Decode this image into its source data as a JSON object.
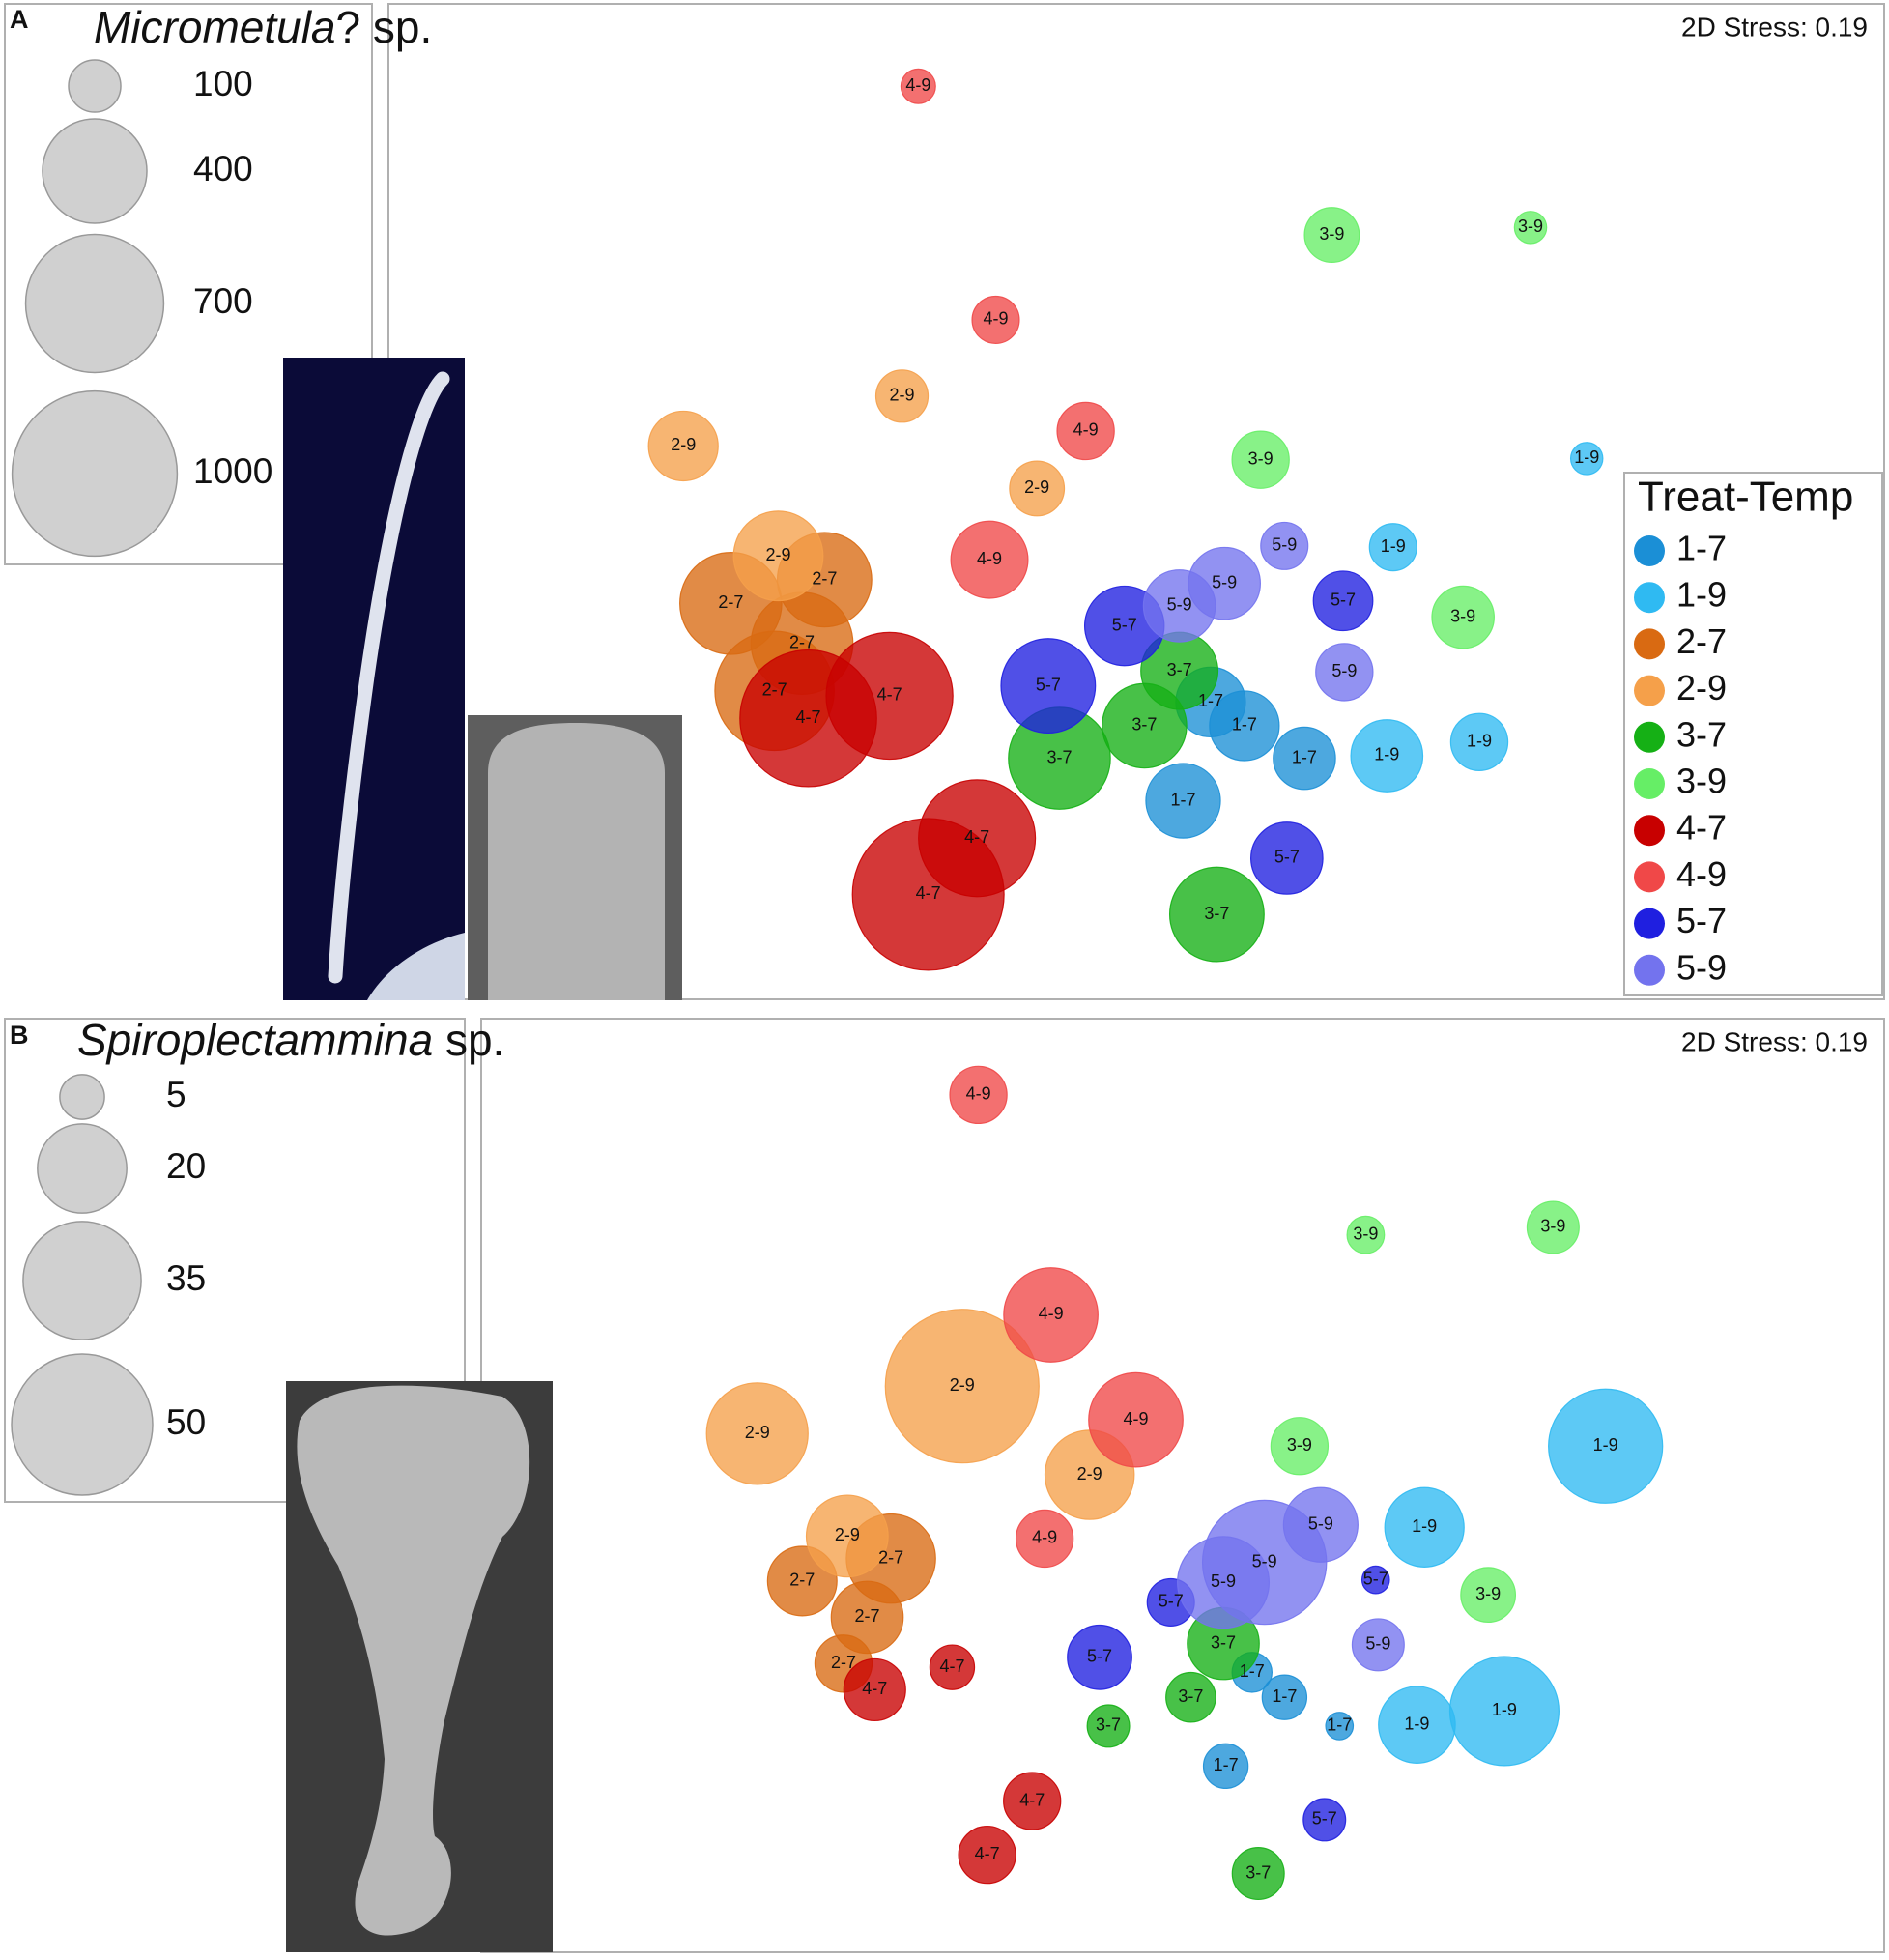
{
  "chart_data": [
    {
      "type": "bubble",
      "panel": "A",
      "title": [
        "Micrometula",
        "? sp."
      ],
      "annotation": "2D Stress: 0.19",
      "xlim": [
        0,
        1197
      ],
      "ylim": [
        0,
        797
      ],
      "size_legend": [
        100,
        400,
        700,
        1000
      ],
      "legend_title": "Treat-Temp",
      "legend": "right",
      "series": [
        {
          "name": "1-7",
          "color": "#1b8fd6",
          "x": [
            658,
            685,
            733,
            636
          ],
          "y": [
            238,
            219,
            193,
            159
          ],
          "sizes": [
            178,
            178,
            142,
            204
          ]
        },
        {
          "name": "1-9",
          "color": "#2fbaf2",
          "x": [
            959,
            804,
            799,
            873
          ],
          "y": [
            433,
            362,
            195,
            206
          ],
          "sizes": [
            38,
            82,
            190,
            120
          ]
        },
        {
          "name": "2-7",
          "color": "#d96a12",
          "x": [
            349,
            274,
            331,
            309
          ],
          "y": [
            336,
            317,
            285,
            247
          ],
          "sizes": [
            327,
            381,
            381,
            522
          ]
        },
        {
          "name": "2-9",
          "color": "#f5a04a",
          "x": [
            411,
            236,
            519,
            312
          ],
          "y": [
            483,
            443,
            409,
            355
          ],
          "sizes": [
            100,
            178,
            110,
            294
          ]
        },
        {
          "name": "3-7",
          "color": "#15b015",
          "x": [
            633,
            605,
            537,
            663
          ],
          "y": [
            263,
            219,
            193,
            68
          ],
          "sizes": [
            218,
            262,
            381,
            327
          ]
        },
        {
          "name": "3-9",
          "color": "#66ee66",
          "x": [
            755,
            914,
            698,
            860
          ],
          "y": [
            612,
            618,
            432,
            306
          ],
          "sizes": [
            110,
            38,
            120,
            142
          ]
        },
        {
          "name": "4-7",
          "color": "#c80000",
          "x": [
            401,
            336,
            471,
            432
          ],
          "y": [
            243,
            225,
            129,
            84
          ],
          "sizes": [
            590,
            686,
            501,
            844
          ]
        },
        {
          "name": "4-9",
          "color": "#f04848",
          "x": [
            424,
            486,
            558,
            481
          ],
          "y": [
            731,
            544,
            455,
            352
          ],
          "sizes": [
            44,
            82,
            120,
            218
          ]
        },
        {
          "name": "5-7",
          "color": "#1f1fe0",
          "x": [
            589,
            764,
            528,
            719
          ],
          "y": [
            299,
            319,
            251,
            113
          ],
          "sizes": [
            232,
            130,
            327,
            190
          ]
        },
        {
          "name": "5-9",
          "color": "#7373ee",
          "x": [
            717,
            669,
            633,
            765
          ],
          "y": [
            363,
            333,
            315,
            262
          ],
          "sizes": [
            82,
            190,
            190,
            120
          ]
        }
      ]
    },
    {
      "type": "bubble",
      "panel": "B",
      "title": [
        "Spiroplectammina",
        " sp."
      ],
      "annotation": "2D Stress: 0.19",
      "xlim": [
        0,
        1123
      ],
      "ylim": [
        0,
        747
      ],
      "size_legend": [
        5,
        20,
        35,
        50
      ],
      "series": [
        {
          "name": "1-7",
          "color": "#1b8fd6",
          "x": [
            617,
            643,
            687,
            596
          ],
          "y": [
            224,
            204,
            181,
            149
          ],
          "sizes": [
            4,
            5,
            1.9,
            5
          ]
        },
        {
          "name": "1-9",
          "color": "#2fbaf2",
          "x": [
            900,
            755,
            749,
            819
          ],
          "y": [
            405,
            340,
            182,
            193
          ],
          "sizes": [
            32.7,
            15.8,
            14.8,
            29.9
          ]
        },
        {
          "name": "2-7",
          "color": "#d96a12",
          "x": [
            328,
            257,
            309,
            290
          ],
          "y": [
            315,
            297,
            268,
            231
          ],
          "sizes": [
            20,
            12.1,
            13,
            8.2
          ]
        },
        {
          "name": "2-9",
          "color": "#f5a04a",
          "x": [
            385,
            221,
            487,
            293
          ],
          "y": [
            453,
            415,
            382,
            333
          ],
          "sizes": [
            59.3,
            25.9,
            20,
            16.8
          ]
        },
        {
          "name": "3-7",
          "color": "#15b015",
          "x": [
            594,
            568,
            502,
            622
          ],
          "y": [
            247,
            204,
            181,
            63
          ],
          "sizes": [
            13,
            6.2,
            4.5,
            6.8
          ]
        },
        {
          "name": "3-9",
          "color": "#66ee66",
          "x": [
            708,
            858,
            655,
            806
          ],
          "y": [
            574,
            580,
            405,
            286
          ],
          "sizes": [
            3.5,
            6.8,
            8.2,
            7.5
          ]
        },
        {
          "name": "4-7",
          "color": "#c80000",
          "x": [
            377,
            315,
            441,
            405
          ],
          "y": [
            228,
            210,
            121,
            78
          ],
          "sizes": [
            5,
            9.6,
            8.2,
            8.2
          ]
        },
        {
          "name": "4-9",
          "color": "#f04848",
          "x": [
            398,
            456,
            524,
            451
          ],
          "y": [
            686,
            510,
            426,
            331
          ],
          "sizes": [
            8.2,
            22.3,
            22.3,
            8.2
          ]
        },
        {
          "name": "5-7",
          "color": "#1f1fe0",
          "x": [
            716,
            552,
            495,
            675
          ],
          "y": [
            298,
            280,
            236,
            106
          ],
          "sizes": [
            1.9,
            5.6,
            10.4,
            4.5
          ]
        },
        {
          "name": "5-9",
          "color": "#7373ee",
          "x": [
            672,
            627,
            594,
            718
          ],
          "y": [
            342,
            312,
            296,
            246
          ],
          "sizes": [
            13.9,
            38.6,
            21.1,
            6.8
          ]
        }
      ]
    }
  ]
}
